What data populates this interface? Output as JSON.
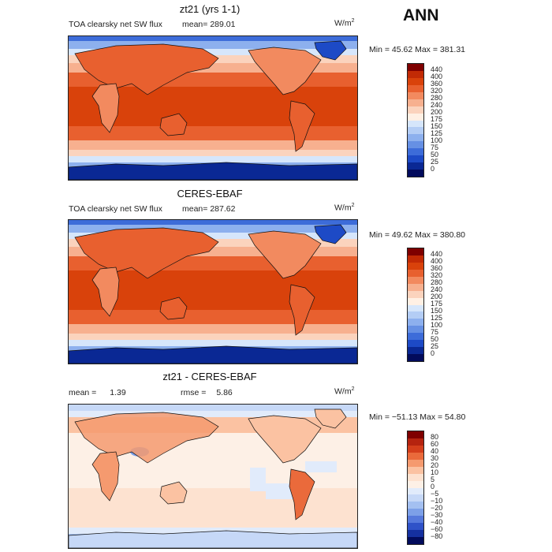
{
  "season": "ANN",
  "panels": [
    {
      "title": "zt21 (yrs 1-1)",
      "field_label": "TOA clearsky net SW flux",
      "mean_label": "mean=",
      "mean_value": "289.01",
      "rmse_label": "",
      "rmse_value": "",
      "units": "W/m",
      "units_sup": "2",
      "min_label": "Min =",
      "min_value": "45.62",
      "max_label": "Max =",
      "max_value": "381.31",
      "colorbar_labels": [
        "440",
        "400",
        "360",
        "320",
        "280",
        "240",
        "200",
        "175",
        "150",
        "125",
        "100",
        "75",
        "50",
        "25",
        "0"
      ]
    },
    {
      "title": "CERES-EBAF",
      "field_label": "TOA clearsky net SW flux",
      "mean_label": "mean=",
      "mean_value": "287.62",
      "rmse_label": "",
      "rmse_value": "",
      "units": "W/m",
      "units_sup": "2",
      "min_label": "Min =",
      "min_value": "49.62",
      "max_label": "Max =",
      "max_value": "380.80",
      "colorbar_labels": [
        "440",
        "400",
        "360",
        "320",
        "280",
        "240",
        "200",
        "175",
        "150",
        "125",
        "100",
        "75",
        "50",
        "25",
        "0"
      ]
    },
    {
      "title": "zt21 - CERES-EBAF",
      "field_label": "",
      "mean_label": "mean =",
      "mean_value": "1.39",
      "rmse_label": "rmse =",
      "rmse_value": "5.86",
      "units": "W/m",
      "units_sup": "2",
      "min_label": "Min =",
      "min_value": "−51.13",
      "max_label": "Max =",
      "max_value": "54.80",
      "colorbar_labels": [
        "80",
        "60",
        "40",
        "30",
        "20",
        "10",
        "5",
        "0",
        "−5",
        "−10",
        "−20",
        "−30",
        "−40",
        "−60",
        "−80"
      ]
    }
  ],
  "colors": {
    "abs_scale": [
      "#7f0000",
      "#c22a05",
      "#d9420b",
      "#e8602f",
      "#f28a5f",
      "#f7b08f",
      "#fbd3bd",
      "#fff0e4",
      "#d6e6fb",
      "#b4cdf5",
      "#8db0ee",
      "#6690e4",
      "#3d6cd9",
      "#1d4ac6",
      "#0a2894",
      "#020b5c"
    ],
    "diff_scale": [
      "#7f0000",
      "#b5230f",
      "#d43e1b",
      "#ea6a3b",
      "#f59a6f",
      "#fbc2a2",
      "#fde2d0",
      "#fdf0e6",
      "#e1ebfb",
      "#c6d8f7",
      "#a4c0f1",
      "#7da0e8",
      "#5679dc",
      "#2f52c8",
      "#1530a0",
      "#020b5c"
    ]
  }
}
